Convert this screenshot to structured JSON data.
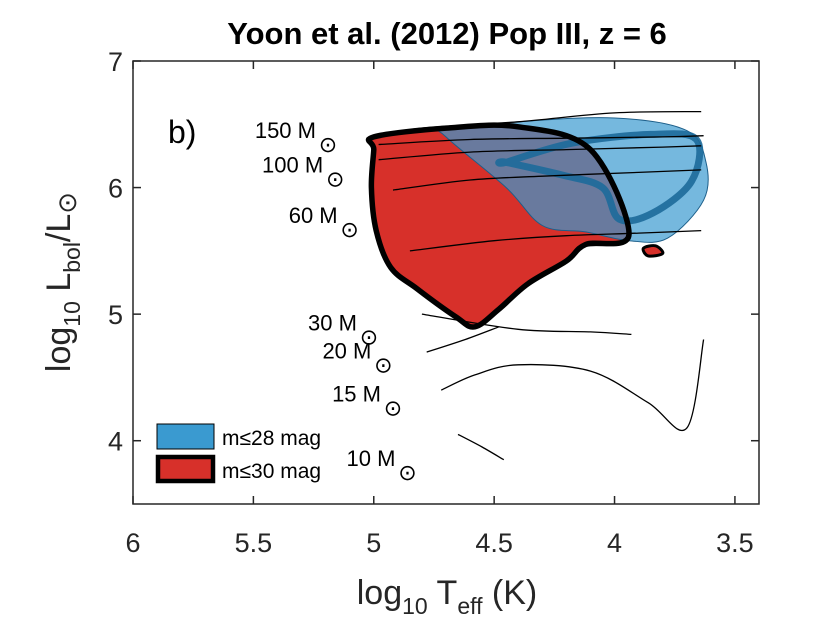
{
  "chart_data": {
    "type": "region",
    "title": "Yoon et al. (2012) Pop III, z = 6",
    "panel_label": "b)",
    "xlabel": {
      "prefix": "log",
      "sub": "10",
      "mid": " T",
      "sub2": "eff",
      "suffix": " (K)"
    },
    "ylabel": {
      "prefix": "log",
      "sub": "10",
      "mid": " L",
      "sub2": "bol",
      "mid2": "/L",
      "sun": "⊙"
    },
    "x_axis": {
      "reversed": true,
      "xlim": [
        3.4,
        6.0
      ],
      "ticks": [
        6,
        5.5,
        5,
        4.5,
        4,
        3.5
      ],
      "tick_labels": [
        "6",
        "5.5",
        "5",
        "4.5",
        "4",
        "3.5"
      ]
    },
    "y_axis": {
      "ylim": [
        3.5,
        7.0
      ],
      "ticks": [
        4,
        5,
        6,
        7
      ],
      "tick_labels": [
        "4",
        "5",
        "6",
        "7"
      ]
    },
    "mass_labels": [
      {
        "text": "150 M",
        "sun": "⊙",
        "logT": 5.24,
        "logL": 6.39
      },
      {
        "text": "100 M",
        "sun": "⊙",
        "logT": 5.21,
        "logL": 6.12
      },
      {
        "text": "60 M",
        "sun": "⊙",
        "logT": 5.15,
        "logL": 5.72
      },
      {
        "text": "30 M",
        "sun": "⊙",
        "logT": 5.07,
        "logL": 4.87
      },
      {
        "text": "20 M",
        "sun": "⊙",
        "logT": 5.01,
        "logL": 4.65
      },
      {
        "text": "15 M",
        "sun": "⊙",
        "logT": 4.97,
        "logL": 4.31
      },
      {
        "text": "10 M",
        "sun": "⊙",
        "logT": 4.91,
        "logL": 3.8
      }
    ],
    "legend": [
      {
        "label": "m≤28 mag",
        "color": "#3a9ad0"
      },
      {
        "label": "m≤30 mag",
        "color": "#d7302a"
      }
    ],
    "series": [
      {
        "name": "m≤30 mag",
        "color": "#d7302a",
        "points": [
          [
            5.0,
            6.4
          ],
          [
            4.7,
            6.47
          ],
          [
            4.4,
            6.48
          ],
          [
            4.1,
            6.3
          ],
          [
            3.94,
            5.63
          ],
          [
            4.12,
            5.55
          ],
          [
            4.2,
            5.42
          ],
          [
            4.36,
            5.24
          ],
          [
            4.48,
            5.04
          ],
          [
            4.58,
            4.9
          ],
          [
            4.66,
            4.98
          ],
          [
            4.82,
            5.2
          ],
          [
            4.93,
            5.37
          ],
          [
            4.99,
            5.66
          ],
          [
            5.01,
            6.0
          ],
          [
            5.0,
            6.3
          ]
        ]
      },
      {
        "name": "m≤28 mag",
        "color": "#3a9ad0",
        "points": [
          [
            4.7,
            6.46
          ],
          [
            4.4,
            6.52
          ],
          [
            4.0,
            6.55
          ],
          [
            3.7,
            6.45
          ],
          [
            3.62,
            6.2
          ],
          [
            3.63,
            5.9
          ],
          [
            3.78,
            5.6
          ],
          [
            3.94,
            5.58
          ],
          [
            4.12,
            5.65
          ],
          [
            4.3,
            5.7
          ],
          [
            4.45,
            6.0
          ],
          [
            4.7,
            6.4
          ]
        ]
      },
      {
        "name": "tracks",
        "tracks": [
          {
            "mass": "150",
            "points": [
              [
                5.02,
                6.4
              ],
              [
                4.8,
                6.47
              ],
              [
                4.4,
                6.52
              ],
              [
                4.0,
                6.59
              ],
              [
                3.64,
                6.6
              ]
            ]
          },
          {
            "mass": "100",
            "points": [
              [
                4.98,
                6.34
              ],
              [
                4.6,
                6.38
              ],
              [
                4.2,
                6.39
              ],
              [
                3.8,
                6.4
              ],
              [
                3.63,
                6.41
              ]
            ]
          },
          {
            "mass": "100b",
            "points": [
              [
                4.98,
                6.22
              ],
              [
                4.6,
                6.28
              ],
              [
                4.2,
                6.3
              ],
              [
                3.8,
                6.32
              ],
              [
                3.64,
                6.33
              ]
            ]
          },
          {
            "mass": "60",
            "points": [
              [
                4.92,
                5.98
              ],
              [
                4.6,
                6.06
              ],
              [
                4.3,
                6.09
              ],
              [
                3.9,
                6.12
              ],
              [
                3.64,
                6.14
              ]
            ]
          },
          {
            "mass": "40",
            "points": [
              [
                4.85,
                5.5
              ],
              [
                4.5,
                5.58
              ],
              [
                4.2,
                5.62
              ],
              [
                3.9,
                5.64
              ],
              [
                3.64,
                5.66
              ]
            ]
          },
          {
            "mass": "30",
            "points": [
              [
                4.8,
                5.0
              ],
              [
                4.4,
                4.88
              ],
              [
                4.1,
                4.86
              ],
              [
                3.93,
                4.84
              ]
            ]
          },
          {
            "mass": "20",
            "points": [
              [
                4.78,
                4.7
              ],
              [
                4.62,
                4.8
              ],
              [
                4.48,
                4.9
              ]
            ]
          },
          {
            "mass": "15",
            "points": [
              [
                4.72,
                4.4
              ],
              [
                4.58,
                4.52
              ],
              [
                4.4,
                4.6
              ],
              [
                4.1,
                4.55
              ],
              [
                3.86,
                4.3
              ],
              [
                3.7,
                4.1
              ],
              [
                3.63,
                4.8
              ]
            ]
          },
          {
            "mass": "10",
            "points": [
              [
                4.65,
                4.05
              ],
              [
                4.55,
                3.95
              ],
              [
                4.46,
                3.85
              ]
            ]
          }
        ]
      }
    ]
  }
}
